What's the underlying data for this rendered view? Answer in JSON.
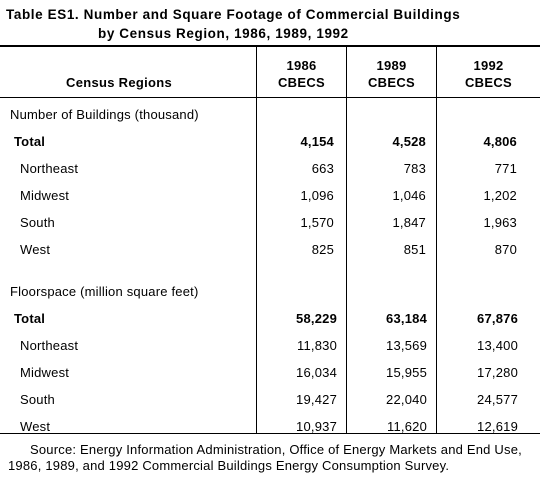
{
  "title": {
    "line1": "Table ES1. Number and Square Footage of Commercial Buildings",
    "line2": "by Census Region, 1986, 1989, 1992"
  },
  "header": {
    "row_label": "Census Regions",
    "columns": [
      {
        "year": "1986",
        "survey": "CBECS"
      },
      {
        "year": "1989",
        "survey": "CBECS"
      },
      {
        "year": "1992",
        "survey": "CBECS"
      }
    ]
  },
  "sections": [
    {
      "title": "Number of Buildings (thousand)",
      "rows": [
        {
          "label": "Total",
          "values": [
            "4,154",
            "4,528",
            "4,806"
          ],
          "bold": true
        },
        {
          "label": "Northeast",
          "values": [
            "663",
            "783",
            "771"
          ]
        },
        {
          "label": "Midwest",
          "values": [
            "1,096",
            "1,046",
            "1,202"
          ]
        },
        {
          "label": "South",
          "values": [
            "1,570",
            "1,847",
            "1,963"
          ]
        },
        {
          "label": "West",
          "values": [
            "825",
            "851",
            "870"
          ]
        }
      ]
    },
    {
      "title": "Floorspace (million square feet)",
      "rows": [
        {
          "label": "Total",
          "values": [
            "58,229",
            "63,184",
            "67,876"
          ],
          "bold": true
        },
        {
          "label": "Northeast",
          "values": [
            "11,830",
            "13,569",
            "13,400"
          ]
        },
        {
          "label": "Midwest",
          "values": [
            "16,034",
            "15,955",
            "17,280"
          ]
        },
        {
          "label": "South",
          "values": [
            "19,427",
            "22,040",
            "24,577"
          ]
        },
        {
          "label": "West",
          "values": [
            "10,937",
            "11,620",
            "12,619"
          ]
        }
      ]
    }
  ],
  "source": "Source: Energy Information Administration, Office of Energy Markets and End Use, 1986, 1989, and 1992 Commercial Buildings Energy Consumption Survey."
}
